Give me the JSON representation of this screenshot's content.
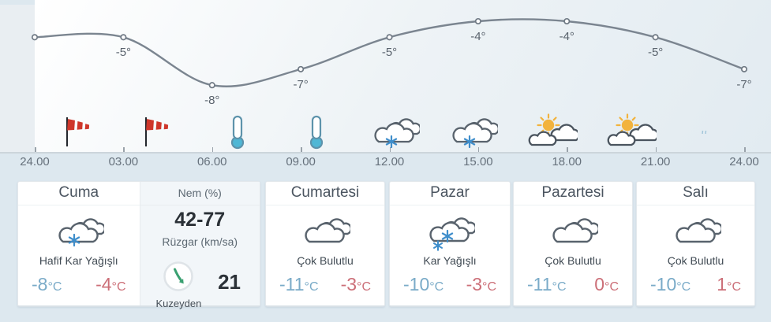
{
  "chart_data": {
    "type": "line",
    "title": "",
    "xlabel": "",
    "ylabel": "",
    "x": [
      "24.00",
      "03.00",
      "06.00",
      "09.00",
      "12.00",
      "15.00",
      "18.00",
      "21.00",
      "24.00"
    ],
    "values": [
      -5,
      -5,
      -8,
      -7,
      -5,
      -4,
      -4,
      -5,
      -7
    ],
    "point_labels": [
      "",
      "-5°",
      "-8°",
      "-7°",
      "-5°",
      "-4°",
      "-4°",
      "-5°",
      "-7°"
    ],
    "unit": "°C",
    "ylim": [
      -9,
      -3
    ],
    "grid": false,
    "legend": false,
    "condition_icons": [
      "windsock",
      "windsock",
      "thermometer",
      "thermometer",
      "snow-cloud",
      "snow-cloud",
      "sun-cloud",
      "sun-cloud"
    ]
  },
  "forecast": {
    "humidity": {
      "label": "Nem (%)",
      "value": "42-77"
    },
    "wind": {
      "label": "Rüzgar (km/sa)",
      "speed": "21",
      "direction": "Kuzeyden"
    },
    "cards": [
      {
        "day": "Cuma",
        "condition": "Hafif Kar Yağışlı",
        "low": "-8",
        "high": "-4",
        "unit": "°C",
        "icon": "light-snow-cloud"
      },
      {
        "day": "Cumartesi",
        "condition": "Çok Bulutlu",
        "low": "-11",
        "high": "-3",
        "unit": "°C",
        "icon": "clouds"
      },
      {
        "day": "Pazar",
        "condition": "Kar Yağışlı",
        "low": "-10",
        "high": "-3",
        "unit": "°C",
        "icon": "snow-cloud"
      },
      {
        "day": "Pazartesi",
        "condition": "Çok Bulutlu",
        "low": "-11",
        "high": "0",
        "unit": "°C",
        "icon": "clouds"
      },
      {
        "day": "Salı",
        "condition": "Çok Bulutlu",
        "low": "-10",
        "high": "1",
        "unit": "°C",
        "icon": "clouds"
      }
    ]
  },
  "colors": {
    "page_background": "#dde8ef",
    "chart_line": "#7b8590",
    "temp_low": "#7aabc8",
    "temp_high": "#cc6f78",
    "snowflake": "#3f8ecb",
    "sun": "#f2b33d",
    "windsock": "#ce372b",
    "wind_arrow": "#3aa071",
    "thermometer_fluid": "#4fb7d5"
  }
}
